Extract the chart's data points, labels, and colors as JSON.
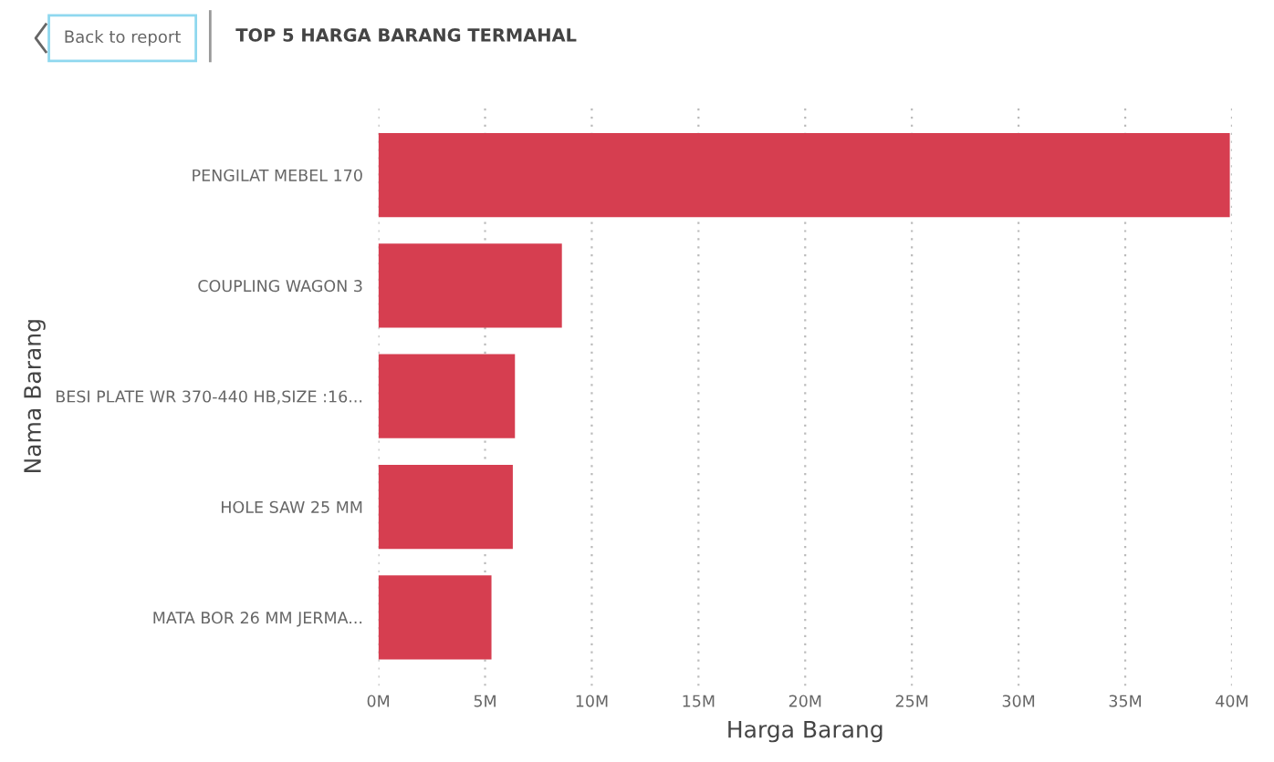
{
  "chart_data": {
    "type": "bar",
    "orientation": "horizontal",
    "title": "TOP 5 HARGA BARANG TERMAHAL",
    "xlabel": "Harga Barang",
    "ylabel": "Nama Barang",
    "annotations": [
      "Back to report"
    ],
    "categories": [
      "PENGILAT MEBEL 170",
      "COUPLING WAGON 3",
      "BESI PLATE WR 370-440 HB,SIZE :16...",
      "HOLE SAW 25 MM",
      "MATA BOR 26 MM JERMA..."
    ],
    "values": [
      39.9,
      8.6,
      6.4,
      6.3,
      5.3
    ],
    "color": "#d63e50",
    "xlim": [
      0,
      40
    ],
    "xticks": [
      {
        "value": 0,
        "label": "0M"
      },
      {
        "value": 5,
        "label": "5M"
      },
      {
        "value": 10,
        "label": "10M"
      },
      {
        "value": 15,
        "label": "15M"
      },
      {
        "value": 20,
        "label": "20M"
      },
      {
        "value": 25,
        "label": "25M"
      },
      {
        "value": 30,
        "label": "30M"
      },
      {
        "value": 35,
        "label": "35M"
      },
      {
        "value": 40,
        "label": "40M"
      }
    ],
    "grid": "x",
    "legend": false
  }
}
